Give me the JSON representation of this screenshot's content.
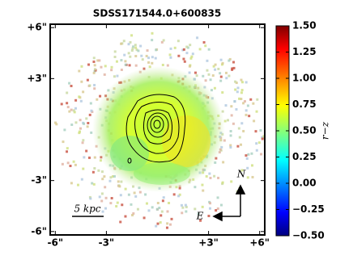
{
  "chart_data": {
    "type": "image",
    "title": "SDSS171544.0+600835",
    "xlim": [
      -6.3,
      6.3
    ],
    "ylim": [
      -6.2,
      6.2
    ],
    "xticks": [
      {
        "value": -6,
        "label": "-6\""
      },
      {
        "value": -3,
        "label": "-3\""
      },
      {
        "value": 3,
        "label": "+3\""
      },
      {
        "value": 6,
        "label": "+6\""
      }
    ],
    "yticks": [
      {
        "value": -6,
        "label": "-6\""
      },
      {
        "value": -3,
        "label": "-3\""
      },
      {
        "value": 3,
        "label": "+3\""
      },
      {
        "value": 6,
        "label": "+6\""
      }
    ],
    "colorbar": {
      "label": "r−z",
      "colormap": "jet",
      "lim": [
        -0.5,
        1.5
      ],
      "ticks": [
        {
          "value": -0.5,
          "label": "−0.50"
        },
        {
          "value": -0.25,
          "label": "−0.25"
        },
        {
          "value": 0,
          "label": "0.00"
        },
        {
          "value": 0.25,
          "label": "0.25"
        },
        {
          "value": 0.5,
          "label": "0.50"
        },
        {
          "value": 0.75,
          "label": "0.75"
        },
        {
          "value": 1,
          "label": "1.00"
        },
        {
          "value": 1.25,
          "label": "1.25"
        },
        {
          "value": 1.5,
          "label": "1.50"
        }
      ]
    },
    "annotations": {
      "scale_bar": "5 kpc",
      "north": "N",
      "east": "E"
    }
  }
}
